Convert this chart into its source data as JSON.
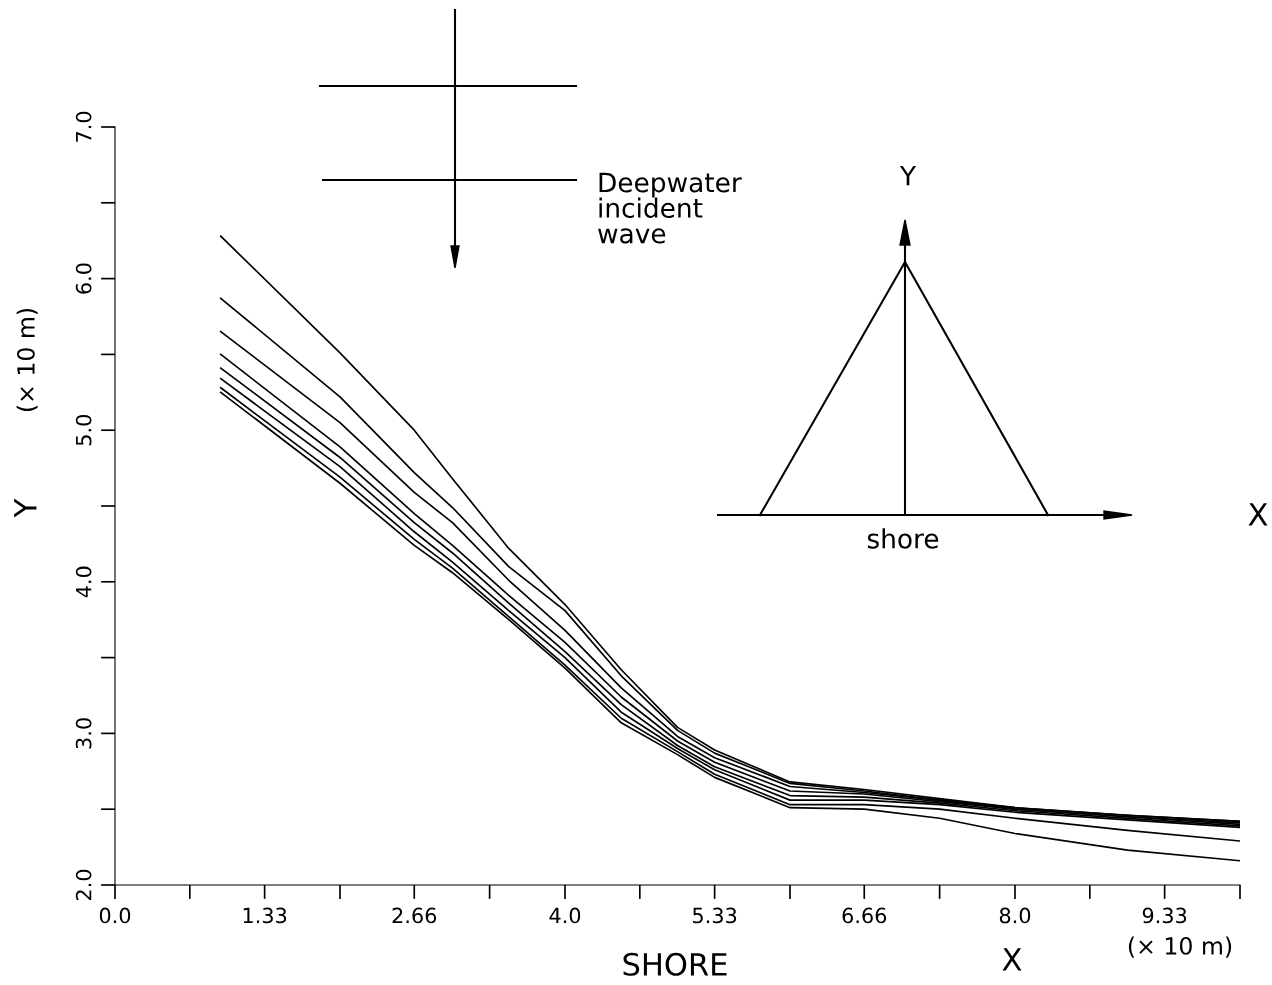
{
  "chart_data": {
    "type": "line",
    "xlabel": "SHORE",
    "ylabel": "Y",
    "annotations": [
      "(× 10 m)",
      "X",
      "(× 10 m)",
      "Deepwater\nincident\nwave",
      "Y",
      "shore",
      "X"
    ],
    "x": [
      0.94,
      2,
      2.66,
      3,
      3.5,
      4,
      4.5,
      5,
      5.33,
      6,
      6.66,
      7.33,
      8,
      9,
      10
    ],
    "series": [
      {
        "color": "#000000",
        "values": [
          6.28,
          5.51,
          5.0,
          4.68,
          4.22,
          3.85,
          3.42,
          3.04,
          2.89,
          2.68,
          2.63,
          2.57,
          2.51,
          2.46,
          2.42
        ]
      },
      {
        "color": "#000000",
        "values": [
          5.87,
          5.22,
          4.72,
          4.49,
          4.1,
          3.81,
          3.38,
          3.02,
          2.87,
          2.67,
          2.62,
          2.56,
          2.51,
          2.46,
          2.42
        ]
      },
      {
        "color": "#000000",
        "values": [
          5.65,
          5.05,
          4.59,
          4.39,
          4.01,
          3.68,
          3.3,
          2.98,
          2.84,
          2.65,
          2.61,
          2.56,
          2.5,
          2.45,
          2.41
        ]
      },
      {
        "color": "#000000",
        "values": [
          5.5,
          4.89,
          4.45,
          4.24,
          3.91,
          3.6,
          3.24,
          2.95,
          2.81,
          2.62,
          2.6,
          2.55,
          2.5,
          2.45,
          2.4
        ]
      },
      {
        "color": "#000000",
        "values": [
          5.41,
          4.82,
          4.39,
          4.19,
          3.86,
          3.54,
          3.19,
          2.92,
          2.78,
          2.59,
          2.58,
          2.54,
          2.49,
          2.44,
          2.39
        ]
      },
      {
        "color": "#000000",
        "values": [
          5.34,
          4.76,
          4.33,
          4.13,
          3.81,
          3.5,
          3.14,
          2.9,
          2.76,
          2.56,
          2.56,
          2.53,
          2.48,
          2.43,
          2.38
        ]
      },
      {
        "color": "#000000",
        "values": [
          5.28,
          4.69,
          4.28,
          4.09,
          3.77,
          3.45,
          3.1,
          2.88,
          2.73,
          2.53,
          2.53,
          2.5,
          2.44,
          2.36,
          2.29
        ]
      },
      {
        "color": "#000000",
        "values": [
          5.25,
          4.65,
          4.24,
          4.06,
          3.75,
          3.43,
          3.07,
          2.86,
          2.71,
          2.51,
          2.5,
          2.44,
          2.34,
          2.23,
          2.16
        ]
      }
    ],
    "xlim": [
      0,
      10
    ],
    "ylim": [
      2,
      7
    ],
    "xticks": [
      {
        "value": 0,
        "label": "0.0"
      },
      {
        "value": 0.665,
        "label": null
      },
      1.33,
      {
        "value": 2.0,
        "label": null
      },
      2.66,
      {
        "value": 3.33,
        "label": null
      },
      {
        "value": 4,
        "label": "4.0"
      },
      {
        "value": 4.665,
        "label": null
      },
      5.33,
      {
        "value": 6.0,
        "label": null
      },
      6.66,
      {
        "value": 7.33,
        "label": null
      },
      {
        "value": 8,
        "label": "8.0"
      },
      {
        "value": 8.665,
        "label": null
      },
      9.33,
      {
        "value": 10.0,
        "label": null
      }
    ],
    "yticks": [
      {
        "value": 2,
        "label": "2.0"
      },
      {
        "value": 2.5,
        "label": null
      },
      {
        "value": 3,
        "label": "3.0"
      },
      {
        "value": 3.5,
        "label": null
      },
      {
        "value": 4,
        "label": "4.0"
      },
      {
        "value": 4.5,
        "label": null
      },
      {
        "value": 5,
        "label": "5.0"
      },
      {
        "value": 5.5,
        "label": null
      },
      {
        "value": 6,
        "label": "6.0"
      },
      {
        "value": 6.5,
        "label": null
      },
      {
        "value": 7,
        "label": "7.0"
      }
    ],
    "grid": false,
    "legend": false,
    "marker": "none",
    "line_style": "solid"
  }
}
